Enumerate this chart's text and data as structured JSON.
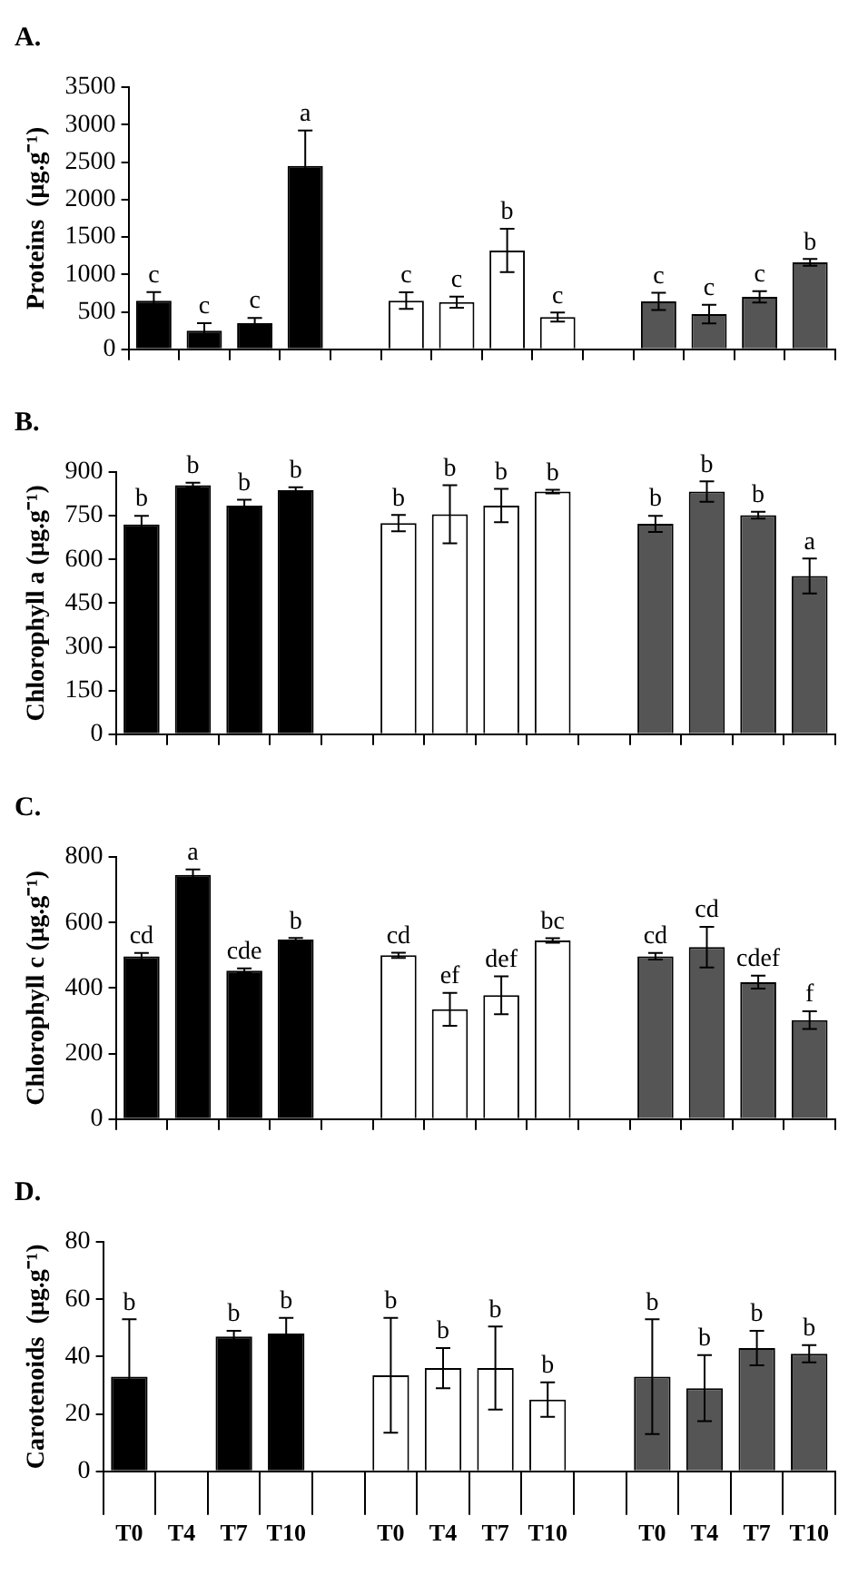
{
  "chart_data": [
    {
      "type": "bar",
      "title": "A.",
      "ylabel": "Proteins  (µg.g⁻¹)",
      "categories": [
        null,
        null,
        null,
        null,
        null,
        null,
        null,
        null,
        null,
        null,
        null,
        null,
        null,
        null
      ],
      "values": [
        650,
        250,
        350,
        2450,
        null,
        650,
        630,
        1320,
        430,
        null,
        640,
        470,
        700,
        1160
      ],
      "errors": [
        115,
        100,
        70,
        470,
        null,
        110,
        75,
        290,
        60,
        null,
        115,
        125,
        75,
        45
      ],
      "colors": [
        "#000000",
        "#000000",
        "#000000",
        "#000000",
        "#ffffff",
        "#ffffff",
        "#ffffff",
        "#ffffff",
        "#ffffff",
        "#ffffff",
        "#555555",
        "#555555",
        "#555555",
        "#555555"
      ],
      "value_labels": [
        "c",
        "c",
        "c",
        "a",
        null,
        "c",
        "c",
        "b",
        "c",
        null,
        "c",
        "c",
        "c",
        "b"
      ],
      "ylim": [
        0,
        3500
      ],
      "yticks": [
        0,
        500,
        1000,
        1500,
        2000,
        2500,
        3000,
        3500
      ]
    },
    {
      "type": "bar",
      "title": "B.",
      "ylabel": "Chlorophyll a (µg.g⁻¹)",
      "categories": [
        null,
        null,
        null,
        null,
        null,
        null,
        null,
        null,
        null,
        null,
        null,
        null,
        null,
        null
      ],
      "values": [
        720,
        855,
        785,
        838,
        null,
        725,
        755,
        785,
        833,
        null,
        722,
        833,
        752,
        543
      ],
      "errors": [
        30,
        8,
        20,
        10,
        null,
        28,
        100,
        57,
        6,
        null,
        28,
        35,
        12,
        60
      ],
      "colors": [
        "#000000",
        "#000000",
        "#000000",
        "#000000",
        "#ffffff",
        "#ffffff",
        "#ffffff",
        "#ffffff",
        "#ffffff",
        "#ffffff",
        "#555555",
        "#555555",
        "#555555",
        "#555555"
      ],
      "value_labels": [
        "b",
        "b",
        "b",
        "b",
        null,
        "b",
        "b",
        "b",
        "b",
        null,
        "b",
        "b",
        "b",
        "a"
      ],
      "ylim": [
        0,
        900
      ],
      "yticks": [
        0,
        150,
        300,
        450,
        600,
        750,
        900
      ]
    },
    {
      "type": "bar",
      "title": "C.",
      "ylabel": "Chlorophyll c (µg.g⁻¹)",
      "categories": [
        null,
        null,
        null,
        null,
        null,
        null,
        null,
        null,
        null,
        null,
        null,
        null,
        null,
        null
      ],
      "values": [
        497,
        745,
        453,
        548,
        null,
        500,
        335,
        378,
        545,
        null,
        497,
        525,
        418,
        302
      ],
      "errors": [
        10,
        17,
        7,
        5,
        null,
        8,
        50,
        58,
        7,
        null,
        10,
        62,
        20,
        27
      ],
      "colors": [
        "#000000",
        "#000000",
        "#000000",
        "#000000",
        "#ffffff",
        "#ffffff",
        "#ffffff",
        "#ffffff",
        "#ffffff",
        "#ffffff",
        "#555555",
        "#555555",
        "#555555",
        "#555555"
      ],
      "value_labels": [
        "cd",
        "a",
        "cde",
        "b",
        null,
        "cd",
        "ef",
        "def",
        "bc",
        null,
        "cd",
        "cd",
        "cdef",
        "f"
      ],
      "ylim": [
        0,
        800
      ],
      "yticks": [
        0,
        200,
        400,
        600,
        800
      ]
    },
    {
      "type": "bar",
      "title": "D.",
      "ylabel": "Carotenoids  (µg.g⁻¹)",
      "categories": [
        "T0",
        "T4",
        "T7",
        "T10",
        null,
        "T0",
        "T4",
        "T7",
        "T10",
        null,
        "T0",
        "T4",
        "T7",
        "T10"
      ],
      "values": [
        33,
        null,
        47,
        48,
        null,
        33.5,
        36,
        36,
        25,
        null,
        33,
        29,
        43,
        41
      ],
      "errors": [
        20,
        null,
        2,
        5.5,
        null,
        20,
        7,
        14.5,
        6,
        null,
        20,
        11.5,
        6,
        3
      ],
      "colors": [
        "#000000",
        "#000000",
        "#000000",
        "#000000",
        "#ffffff",
        "#ffffff",
        "#ffffff",
        "#ffffff",
        "#ffffff",
        "#ffffff",
        "#555555",
        "#555555",
        "#555555",
        "#555555"
      ],
      "value_labels": [
        "b",
        null,
        "b",
        "b",
        null,
        "b",
        "b",
        "b",
        "b",
        null,
        "b",
        "b",
        "b",
        "b"
      ],
      "ylim": [
        0,
        80
      ],
      "yticks": [
        0,
        20,
        40,
        60,
        80
      ]
    }
  ]
}
